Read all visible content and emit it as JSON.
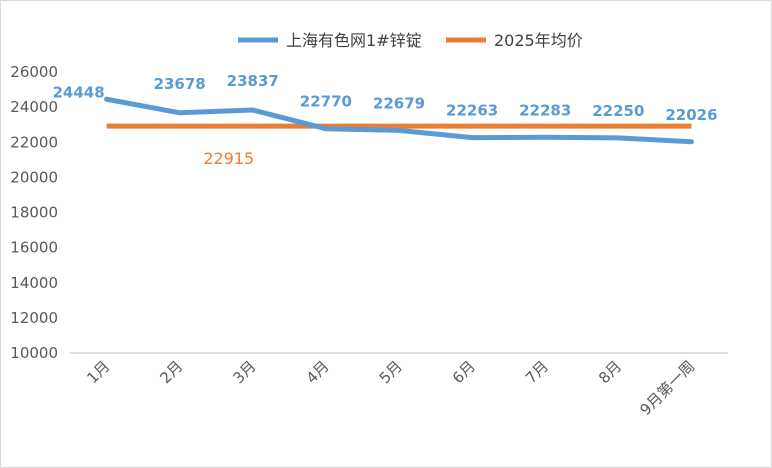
{
  "chart_data": {
    "type": "line",
    "categories": [
      "1月",
      "2月",
      "3月",
      "4月",
      "5月",
      "6月",
      "7月",
      "8月",
      "9月第一周"
    ],
    "series": [
      {
        "name": "上海有色网1#锌锭",
        "values": [
          24448,
          23678,
          23837,
          22770,
          22679,
          22263,
          22283,
          22250,
          22026
        ],
        "color": "#5b9bd5"
      },
      {
        "name": "2025年均价",
        "values": [
          22915,
          22915,
          22915,
          22915,
          22915,
          22915,
          22915,
          22915,
          22915
        ],
        "color": "#ed7d31"
      }
    ],
    "data_labels": [
      "24448",
      "23678",
      "23837",
      "22770",
      "22679",
      "22263",
      "22283",
      "22250",
      "22026"
    ],
    "average_label": "22915",
    "ylim": [
      10000,
      26000
    ],
    "y_ticks": [
      "10000",
      "12000",
      "14000",
      "16000",
      "18000",
      "20000",
      "22000",
      "24000",
      "26000"
    ],
    "grid": false,
    "drop_lines": true,
    "legend_position": "top"
  }
}
